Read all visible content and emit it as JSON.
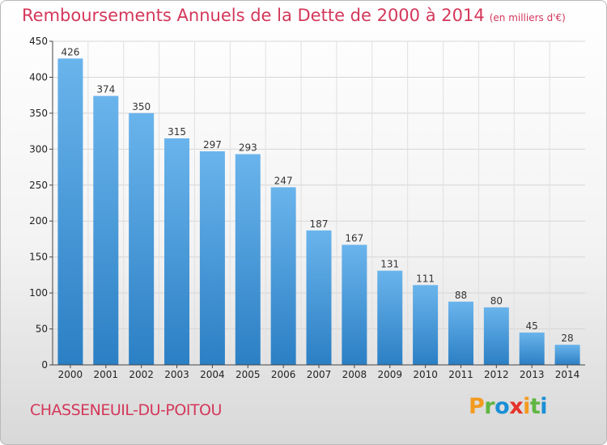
{
  "chart_data": {
    "type": "bar",
    "title": "Remboursements Annuels de la Dette de 2000 à 2014",
    "subtitle": "(en milliers d'€)",
    "categories": [
      "2000",
      "2001",
      "2002",
      "2003",
      "2004",
      "2005",
      "2006",
      "2007",
      "2008",
      "2009",
      "2010",
      "2011",
      "2012",
      "2013",
      "2014"
    ],
    "values": [
      426,
      374,
      350,
      315,
      297,
      293,
      247,
      187,
      167,
      131,
      111,
      88,
      80,
      45,
      28
    ],
    "ylim": [
      0,
      450
    ],
    "yticks": [
      0,
      50,
      100,
      150,
      200,
      250,
      300,
      350,
      400,
      450
    ],
    "xlabel": "",
    "ylabel": "",
    "grid": true,
    "bar_color_top": "#6ab4ec",
    "bar_color_bottom": "#2b7fc4"
  },
  "footer": {
    "city": "CHASSENEUIL-DU-POITOU",
    "logo_letters": [
      "P",
      "r",
      "o",
      "x",
      "i",
      "t",
      "i"
    ],
    "logo_colors": [
      "#f39a1f",
      "#5fb641",
      "#1a8fd6",
      "#e5332a",
      "#f39a1f",
      "#5fb641",
      "#1a8fd6"
    ]
  }
}
